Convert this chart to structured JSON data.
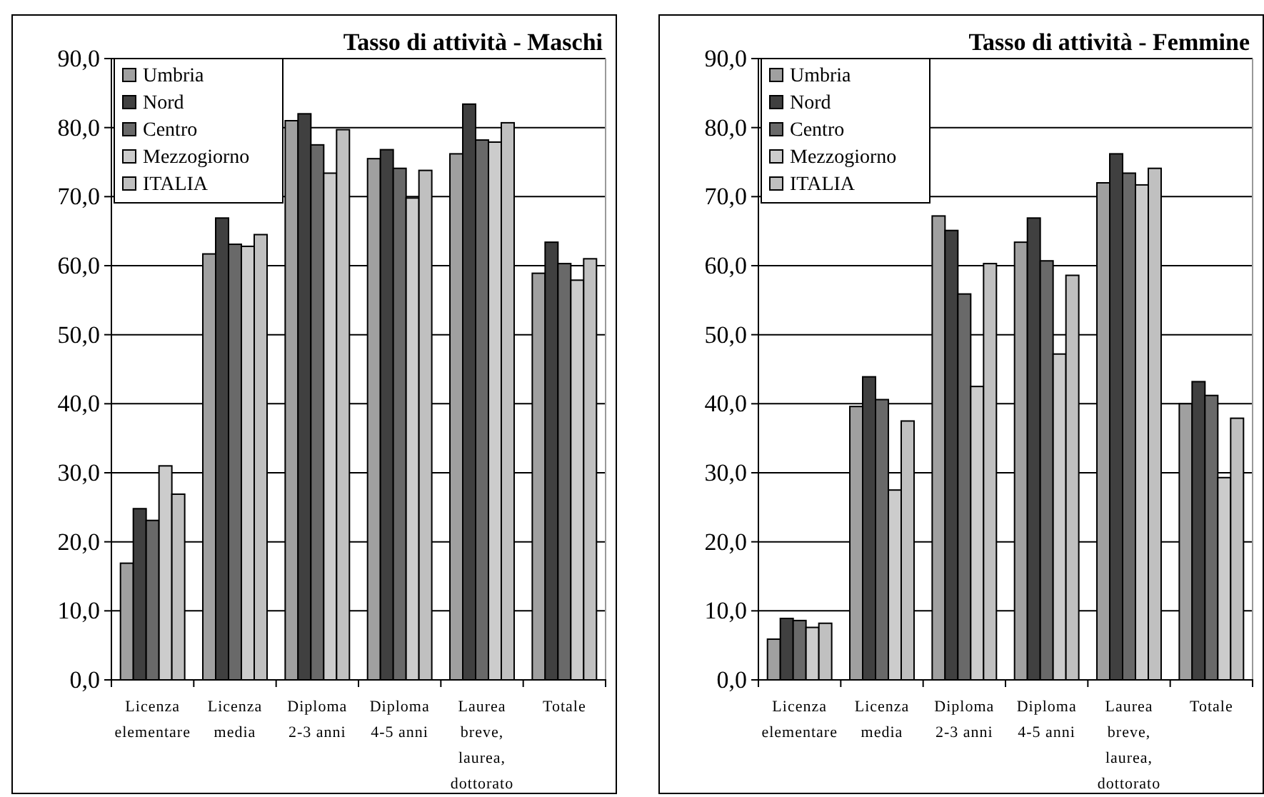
{
  "chart_data": [
    {
      "type": "bar",
      "title": "Tasso di attività - Maschi",
      "categories": [
        "Licenza elementare",
        "Licenza media",
        "Diploma 2-3 anni",
        "Diploma 4-5 anni",
        "Laurea breve, laurea, dottorato",
        "Totale"
      ],
      "series": [
        {
          "name": "Umbria",
          "color": "#a0a0a0",
          "values": [
            16.9,
            61.7,
            81.0,
            75.5,
            76.2,
            58.9
          ]
        },
        {
          "name": "Nord",
          "color": "#404040",
          "values": [
            24.8,
            66.9,
            82.0,
            76.8,
            83.4,
            63.4
          ]
        },
        {
          "name": "Centro",
          "color": "#696969",
          "values": [
            23.1,
            63.1,
            77.5,
            74.1,
            78.2,
            60.3
          ]
        },
        {
          "name": "Mezzogiorno",
          "color": "#cccccc",
          "values": [
            31.0,
            62.8,
            73.4,
            69.8,
            77.9,
            57.9
          ]
        },
        {
          "name": "ITALIA",
          "color": "#c0c0c0",
          "values": [
            26.9,
            64.5,
            79.7,
            73.8,
            80.7,
            61.0
          ]
        }
      ],
      "ylim": [
        0,
        90
      ],
      "yticks": [
        {
          "value": 0,
          "label": "0,0"
        },
        {
          "value": 10,
          "label": "10,0"
        },
        {
          "value": 20,
          "label": "20,0"
        },
        {
          "value": 30,
          "label": "30,0"
        },
        {
          "value": 40,
          "label": "40,0"
        },
        {
          "value": 50,
          "label": "50,0"
        },
        {
          "value": 60,
          "label": "60,0"
        },
        {
          "value": 70,
          "label": "70,0"
        },
        {
          "value": 80,
          "label": "80,0"
        },
        {
          "value": 90,
          "label": "90,0"
        }
      ],
      "grid": "y",
      "legend": "top left"
    },
    {
      "type": "bar",
      "title": "Tasso di attività - Femmine",
      "categories": [
        "Licenza elementare",
        "Licenza media",
        "Diploma 2-3 anni",
        "Diploma 4-5 anni",
        "Laurea breve, laurea, dottorato",
        "Totale"
      ],
      "series": [
        {
          "name": "Umbria",
          "color": "#a0a0a0",
          "values": [
            5.9,
            39.6,
            67.2,
            63.4,
            72.0,
            40.0
          ]
        },
        {
          "name": "Nord",
          "color": "#404040",
          "values": [
            8.9,
            43.9,
            65.1,
            66.9,
            76.2,
            43.2
          ]
        },
        {
          "name": "Centro",
          "color": "#696969",
          "values": [
            8.6,
            40.6,
            55.9,
            60.7,
            73.4,
            41.2
          ]
        },
        {
          "name": "Mezzogiorno",
          "color": "#cccccc",
          "values": [
            7.6,
            27.5,
            42.5,
            47.2,
            71.7,
            29.3
          ]
        },
        {
          "name": "ITALIA",
          "color": "#c0c0c0",
          "values": [
            8.2,
            37.5,
            60.3,
            58.6,
            74.1,
            37.9
          ]
        }
      ],
      "ylim": [
        0,
        90
      ],
      "yticks": [
        {
          "value": 0,
          "label": "0,0"
        },
        {
          "value": 10,
          "label": "10,0"
        },
        {
          "value": 20,
          "label": "20,0"
        },
        {
          "value": 30,
          "label": "30,0"
        },
        {
          "value": 40,
          "label": "40,0"
        },
        {
          "value": 50,
          "label": "50,0"
        },
        {
          "value": 60,
          "label": "60,0"
        },
        {
          "value": 70,
          "label": "70,0"
        },
        {
          "value": 80,
          "label": "80,0"
        },
        {
          "value": 90,
          "label": "90,0"
        }
      ],
      "grid": "y",
      "legend": "top left"
    }
  ]
}
